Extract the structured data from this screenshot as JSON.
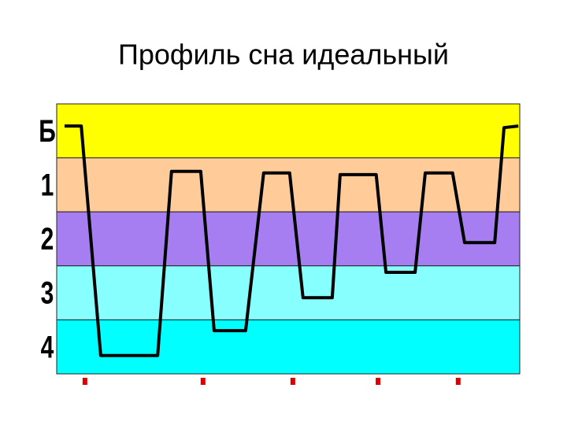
{
  "chart_data": {
    "type": "line",
    "title": "Профиль сна идеальный",
    "ylim": [
      0,
      5
    ],
    "y_inverted": true,
    "xlim": [
      0,
      100
    ],
    "yticks": [
      {
        "value": 0.5,
        "label": "Б"
      },
      {
        "value": 1.5,
        "label": "1"
      },
      {
        "value": 2.5,
        "label": "2"
      },
      {
        "value": 3.5,
        "label": "3"
      },
      {
        "value": 4.5,
        "label": "4"
      }
    ],
    "bands": [
      {
        "from": 0,
        "to": 1,
        "color": "#ffff00"
      },
      {
        "from": 1,
        "to": 2,
        "color": "#ffcc99"
      },
      {
        "from": 2,
        "to": 3,
        "color": "#a77ef2"
      },
      {
        "from": 3,
        "to": 4,
        "color": "#88ffff"
      },
      {
        "from": 4,
        "to": 5,
        "color": "#00ffff"
      }
    ],
    "x": [
      1.7,
      5.3,
      9.5,
      21.8,
      24.8,
      31.1,
      34.0,
      40.8,
      44.7,
      50.3,
      53.2,
      59.5,
      61.2,
      69.0,
      71.1,
      77.4,
      79.6,
      85.5,
      88.1,
      94.6,
      96.6,
      99.7
    ],
    "values": [
      0.41,
      0.41,
      4.66,
      4.66,
      1.25,
      1.25,
      4.2,
      4.2,
      1.28,
      1.28,
      3.59,
      3.59,
      1.31,
      1.31,
      3.12,
      3.12,
      1.28,
      1.28,
      2.57,
      2.57,
      0.44,
      0.41
    ],
    "color": "#000000",
    "markers_x": [
      6.1,
      31.6,
      51.0,
      69.4,
      86.7
    ],
    "marker_color": "#dd0000"
  }
}
